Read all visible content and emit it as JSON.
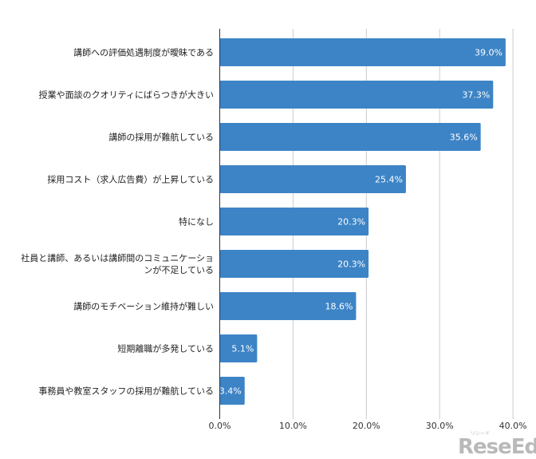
{
  "chart_data": {
    "type": "bar",
    "orientation": "horizontal",
    "categories": [
      "講師への評価処遇制度が曖昧である",
      "授業や面談のクオリティにばらつきが大きい",
      "講師の採用が難航している",
      "採用コスト（求人広告費）が上昇している",
      "特になし",
      "社員と講師、あるいは講師間のコミュニケーションが不足している",
      "講師のモチベーション維持が難しい",
      "短期離職が多発している",
      "事務員や教室スタッフの採用が難航している"
    ],
    "category_lines": [
      [
        "講師への評価処遇制度が曖昧である"
      ],
      [
        "授業や面談のクオリティにばらつきが大きい"
      ],
      [
        "講師の採用が難航している"
      ],
      [
        "採用コスト（求人広告費）が上昇している"
      ],
      [
        "特になし"
      ],
      [
        "社員と講師、あるいは講師間のコミュニケーショ",
        "ンが不足している"
      ],
      [
        "講師のモチベーション維持が難しい"
      ],
      [
        "短期離職が多発している"
      ],
      [
        "事務員や教室スタッフの採用が難航している"
      ]
    ],
    "values": [
      39.0,
      37.3,
      35.6,
      25.4,
      20.3,
      20.3,
      18.6,
      5.1,
      3.4
    ],
    "data_labels": [
      "39.0%",
      "37.3%",
      "35.6%",
      "25.4%",
      "20.3%",
      "20.3%",
      "18.6%",
      "5.1%",
      "3.4%"
    ],
    "xlim": [
      0,
      40
    ],
    "x_ticks": [
      0,
      10,
      20,
      30,
      40
    ],
    "x_tick_labels": [
      "0.0%",
      "10.0%",
      "20.0%",
      "30.0%",
      "40.0%"
    ],
    "grid": true,
    "bar_color": "#3d84c6"
  },
  "watermark": {
    "text": "ReseEd",
    "sub": "リシード"
  }
}
